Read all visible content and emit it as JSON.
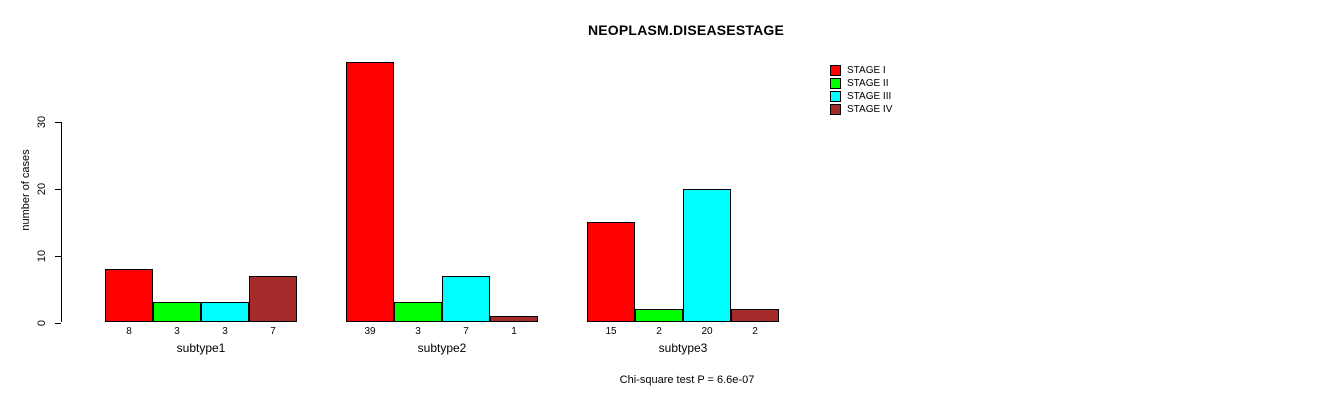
{
  "title": "NEOPLASM.DISEASESTAGE",
  "chart_data": {
    "type": "bar",
    "title": "NEOPLASM.DISEASESTAGE",
    "xlabel": "",
    "ylabel": "number of cases",
    "categories": [
      "subtype1",
      "subtype2",
      "subtype3"
    ],
    "series": [
      {
        "name": "STAGE I",
        "color": "#ff0000",
        "values": [
          8,
          39,
          15
        ]
      },
      {
        "name": "STAGE II",
        "color": "#00ff00",
        "values": [
          3,
          3,
          2
        ]
      },
      {
        "name": "STAGE III",
        "color": "#00ffff",
        "values": [
          3,
          7,
          20
        ]
      },
      {
        "name": "STAGE IV",
        "color": "#a52a2a",
        "values": [
          7,
          1,
          2
        ]
      }
    ],
    "yticks": [
      0,
      10,
      20,
      30
    ],
    "ylim": [
      0,
      39.5
    ],
    "grid": false,
    "legend_position": "top-right",
    "bar_value_labels_shown": true,
    "annotation": "Chi-square test P = 6.6e-07"
  },
  "footer": {
    "stat_test": "Chi-square test P = 6.6e-07"
  }
}
